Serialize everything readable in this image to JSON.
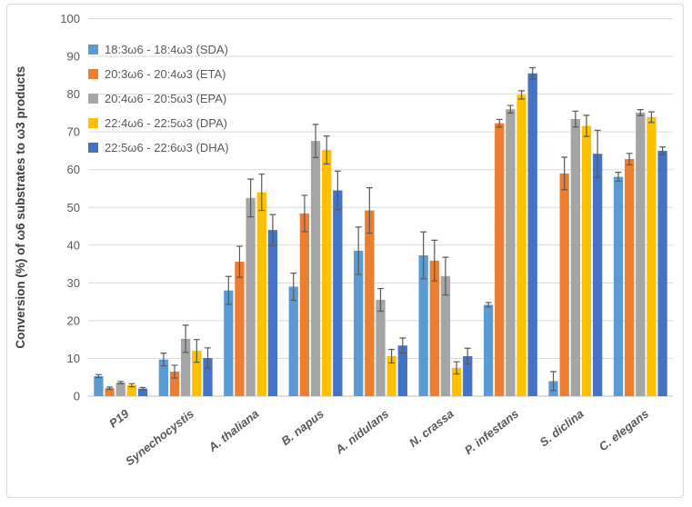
{
  "figure": {
    "background": "#FFFFFF",
    "border_color": "#D9D9D9"
  },
  "chart_data": {
    "type": "bar",
    "title": "",
    "xlabel": "",
    "ylabel": "Conversion (%)  of ω6 substrates to ω3 products",
    "ylim": [
      0,
      100
    ],
    "ytick_step": 10,
    "yticks": [
      0,
      10,
      20,
      30,
      40,
      50,
      60,
      70,
      80,
      90,
      100
    ],
    "grid": "horizontal",
    "legend_position": "top-left-inside",
    "error_bars": true,
    "categories": [
      "P19",
      "Synechocystis",
      "A. thaliana",
      "B. napus",
      "A. nidulans",
      "N. crassa",
      "P. infestans",
      "S. diclina",
      "C. elegans"
    ],
    "series": [
      {
        "name": "18:3ω6 - 18:4ω3 (SDA)",
        "color": "#5B9BD5",
        "values": [
          5.3,
          9.7,
          28.0,
          29.0,
          38.5,
          37.3,
          24.2,
          4.0,
          58.1
        ],
        "errors": [
          0.4,
          1.7,
          3.7,
          3.6,
          6.3,
          6.2,
          0.6,
          2.5,
          1.2
        ]
      },
      {
        "name": "20:3ω6 - 20:4ω3 (ETA)",
        "color": "#ED7D31",
        "values": [
          2.1,
          6.5,
          35.6,
          48.4,
          49.2,
          35.9,
          72.3,
          59.0,
          62.8
        ],
        "errors": [
          0.3,
          1.7,
          4.1,
          4.8,
          6.0,
          5.4,
          1.0,
          4.3,
          1.5
        ]
      },
      {
        "name": "20:4ω6 - 20:5ω3 (EPA)",
        "color": "#A5A5A5",
        "values": [
          3.6,
          15.2,
          52.5,
          67.6,
          25.5,
          31.8,
          76.0,
          73.4,
          75.1
        ],
        "errors": [
          0.3,
          3.6,
          5.0,
          4.4,
          3.0,
          5.0,
          1.0,
          2.1,
          0.8
        ]
      },
      {
        "name": "22:4ω6 - 22:5ω3 (DPA)",
        "color": "#FFC000",
        "values": [
          2.9,
          12.0,
          54.0,
          65.2,
          10.6,
          7.5,
          79.8,
          71.6,
          73.9
        ],
        "errors": [
          0.4,
          3.0,
          4.8,
          3.7,
          1.8,
          1.6,
          1.1,
          2.8,
          1.4
        ]
      },
      {
        "name": "22:5ω6 - 22:6ω3 (DHA)",
        "color": "#4472C4",
        "values": [
          2.0,
          10.1,
          44.0,
          54.5,
          13.4,
          10.6,
          85.5,
          64.2,
          65.0
        ],
        "errors": [
          0.3,
          2.7,
          4.1,
          5.1,
          2.0,
          2.1,
          1.5,
          6.2,
          1.0
        ]
      }
    ]
  },
  "axis_style": {
    "tick_label_color": "#595959",
    "grid_color": "#D9D9D9",
    "error_bar_color": "#595959"
  }
}
